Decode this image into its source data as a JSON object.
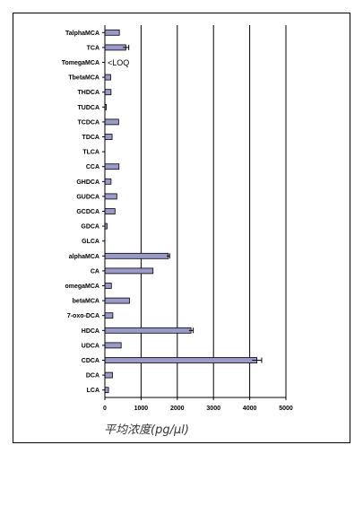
{
  "chart_data": {
    "type": "bar",
    "orientation": "horizontal",
    "categories": [
      "TalphaMCA",
      "TCA",
      "TomegaMCA",
      "TbetaMCA",
      "THDCA",
      "TUDCA",
      "TCDCA",
      "TDCA",
      "TLCA",
      "CCA",
      "GHDCA",
      "GUDCA",
      "GCDCA",
      "GDCA",
      "GLCA",
      "alphaMCA",
      "CA",
      "omegaMCA",
      "betaMCA",
      "7-oxo-DCA",
      "HDCA",
      "UDCA",
      "CDCA",
      "DCA",
      "LCA"
    ],
    "values": [
      400,
      580,
      0,
      160,
      170,
      40,
      380,
      200,
      0,
      390,
      170,
      330,
      280,
      60,
      0,
      1750,
      1330,
      180,
      680,
      220,
      2380,
      450,
      4200,
      210,
      100
    ],
    "errors": [
      0,
      80,
      0,
      0,
      0,
      0,
      0,
      0,
      0,
      0,
      0,
      0,
      0,
      0,
      0,
      40,
      0,
      0,
      0,
      0,
      60,
      0,
      130,
      0,
      0
    ],
    "annotations": [
      {
        "category": "TomegaMCA",
        "text": "<LOQ"
      }
    ],
    "xlabel": "平均浓度(pg/μl)",
    "xlim": [
      0,
      5000
    ],
    "xticks": [
      "0",
      "1000",
      "2000",
      "3000",
      "4000",
      "5000"
    ],
    "grid": "vertical major lines",
    "colors": {
      "bar": "#9999cc",
      "bar_edge": "#000000",
      "grid": "#000000"
    }
  }
}
